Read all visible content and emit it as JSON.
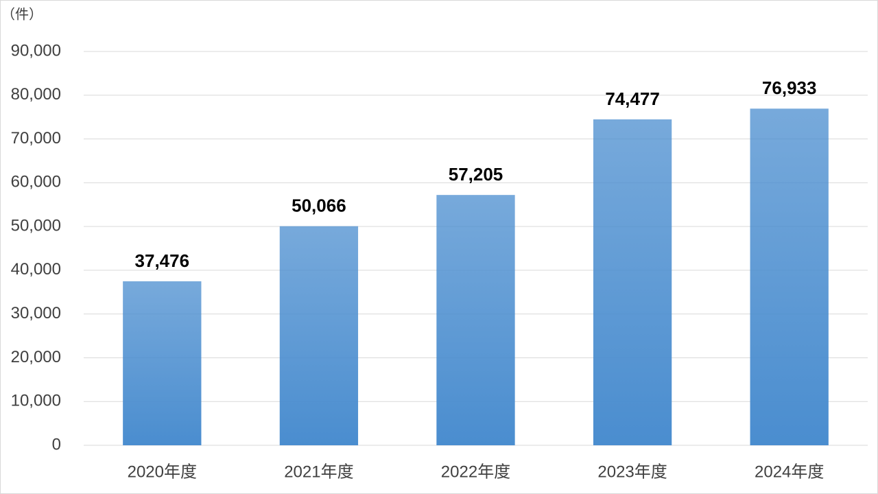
{
  "chart_data": {
    "type": "bar",
    "unit_label": "（件）",
    "categories": [
      "2020年度",
      "2021年度",
      "2022年度",
      "2023年度",
      "2024年度"
    ],
    "values": [
      37476,
      50066,
      57205,
      74477,
      76933
    ],
    "value_labels": [
      "37,476",
      "50,066",
      "57,205",
      "74,477",
      "76,933"
    ],
    "color": "#4a8dcf",
    "ylim": [
      0,
      90000
    ],
    "yticks": [
      0,
      {
        "value": 10000,
        "label": "10,000"
      },
      {
        "value": 20000,
        "label": "20,000"
      },
      {
        "value": 30000,
        "label": "30,000"
      },
      {
        "value": 40000,
        "label": "40,000"
      },
      {
        "value": 50000,
        "label": "50,000"
      },
      {
        "value": 60000,
        "label": "60,000"
      },
      {
        "value": 70000,
        "label": "70,000"
      },
      {
        "value": 80000,
        "label": "80,000"
      },
      {
        "value": 90000,
        "label": "90,000"
      }
    ],
    "grid": true
  }
}
